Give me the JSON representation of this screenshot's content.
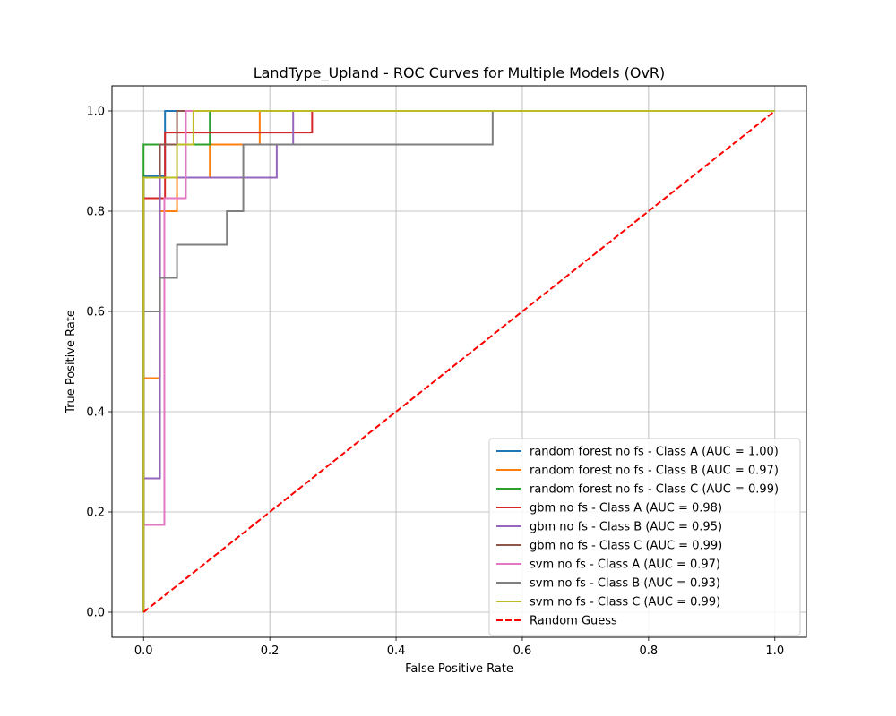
{
  "chart_data": {
    "type": "line",
    "title": "LandType_Upland - ROC Curves for Multiple Models (OvR)",
    "xlabel": "False Positive Rate",
    "ylabel": "True Positive Rate",
    "xlim": [
      -0.05,
      1.05
    ],
    "ylim": [
      -0.05,
      1.05
    ],
    "xticks": [
      0.0,
      0.2,
      0.4,
      0.6,
      0.8,
      1.0
    ],
    "yticks": [
      0.0,
      0.2,
      0.4,
      0.6,
      0.8,
      1.0
    ],
    "xtick_labels": [
      "0.0",
      "0.2",
      "0.4",
      "0.6",
      "0.8",
      "1.0"
    ],
    "ytick_labels": [
      "0.0",
      "0.2",
      "0.4",
      "0.6",
      "0.8",
      "1.0"
    ],
    "grid": true,
    "legend_position": "lower-right",
    "series": [
      {
        "name": "random forest no fs - Class A (AUC = 1.00)",
        "color": "#1f77b4",
        "style": "solid",
        "x": [
          0,
          0,
          0.034,
          0.034,
          1.0
        ],
        "y": [
          0,
          0.87,
          0.87,
          1.0,
          1.0
        ]
      },
      {
        "name": "random forest no fs - Class B (AUC = 0.97)",
        "color": "#ff7f0e",
        "style": "solid",
        "x": [
          0,
          0,
          0.026,
          0.026,
          0.053,
          0.053,
          0.105,
          0.105,
          0.158,
          0.158,
          0.184,
          0.184,
          1.0
        ],
        "y": [
          0,
          0.467,
          0.467,
          0.8,
          0.8,
          0.867,
          0.867,
          0.933,
          0.933,
          0.933,
          0.933,
          1.0,
          1.0
        ]
      },
      {
        "name": "random forest no fs - Class C (AUC = 0.99)",
        "color": "#2ca02c",
        "style": "solid",
        "x": [
          0,
          0,
          0.105,
          0.105,
          1.0
        ],
        "y": [
          0,
          0.933,
          0.933,
          1.0,
          1.0
        ]
      },
      {
        "name": "gbm no fs - Class A (AUC = 0.98)",
        "color": "#d62728",
        "style": "solid",
        "x": [
          0,
          0,
          0.034,
          0.034,
          0.267,
          0.267,
          1.0
        ],
        "y": [
          0,
          0.826,
          0.826,
          0.957,
          0.957,
          1.0,
          1.0
        ]
      },
      {
        "name": "gbm no fs - Class B (AUC = 0.95)",
        "color": "#9467bd",
        "style": "solid",
        "x": [
          0,
          0,
          0.026,
          0.026,
          0.211,
          0.211,
          0.237,
          0.237,
          1.0
        ],
        "y": [
          0,
          0.267,
          0.267,
          0.867,
          0.867,
          0.933,
          0.933,
          1.0,
          1.0
        ]
      },
      {
        "name": "gbm no fs - Class C (AUC = 0.99)",
        "color": "#8c564b",
        "style": "solid",
        "x": [
          0,
          0,
          0.026,
          0.026,
          0.053,
          0.053,
          1.0
        ],
        "y": [
          0,
          0.867,
          0.867,
          0.933,
          0.933,
          1.0,
          1.0
        ]
      },
      {
        "name": "svm no fs - Class A (AUC = 0.97)",
        "color": "#e377c2",
        "style": "solid",
        "x": [
          0,
          0,
          0.033,
          0.033,
          0.067,
          0.067,
          1.0
        ],
        "y": [
          0,
          0.174,
          0.174,
          0.826,
          0.826,
          1.0,
          1.0
        ]
      },
      {
        "name": "svm no fs - Class B (AUC = 0.93)",
        "color": "#7f7f7f",
        "style": "solid",
        "x": [
          0,
          0,
          0.026,
          0.026,
          0.053,
          0.053,
          0.132,
          0.132,
          0.158,
          0.158,
          0.553,
          0.553,
          1.0
        ],
        "y": [
          0,
          0.6,
          0.6,
          0.667,
          0.667,
          0.733,
          0.733,
          0.8,
          0.8,
          0.933,
          0.933,
          1.0,
          1.0
        ]
      },
      {
        "name": "svm no fs - Class C (AUC = 0.99)",
        "color": "#bcbd22",
        "style": "solid",
        "x": [
          0,
          0,
          0.053,
          0.053,
          0.079,
          0.079,
          1.0
        ],
        "y": [
          0,
          0.867,
          0.867,
          0.933,
          0.933,
          1.0,
          1.0
        ]
      },
      {
        "name": "Random Guess",
        "color": "#ff0000",
        "style": "dashed",
        "x": [
          0,
          1
        ],
        "y": [
          0,
          1
        ]
      }
    ]
  }
}
